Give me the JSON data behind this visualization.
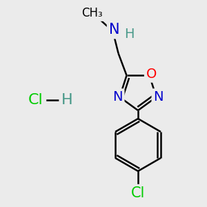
{
  "background_color": "#ebebeb",
  "atom_colors": {
    "C": "#000000",
    "N": "#0000cc",
    "O": "#ff0000",
    "Cl_green": "#00cc00",
    "H": "#4a9a8a"
  },
  "bond_color": "#000000",
  "bond_width": 1.8,
  "font_size_atoms": 14,
  "font_size_label": 13,
  "fig_width": 3.0,
  "fig_height": 3.0,
  "dpi": 100
}
